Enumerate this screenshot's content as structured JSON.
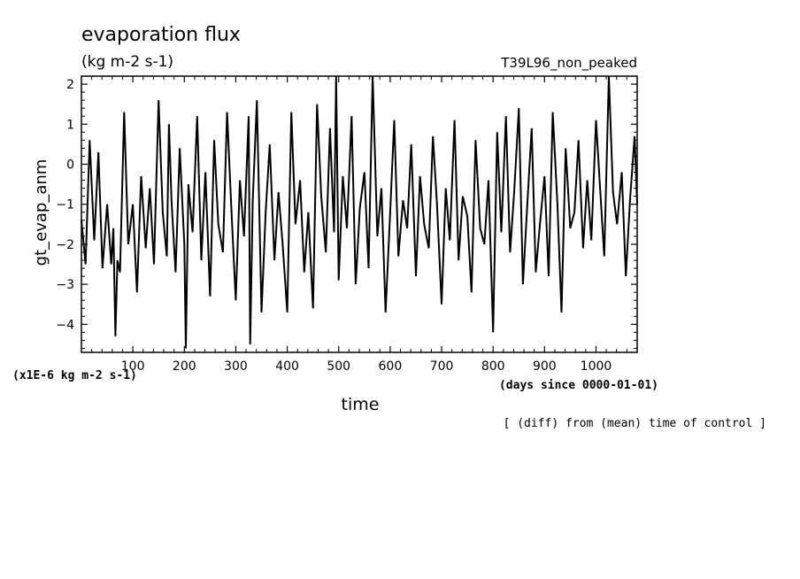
{
  "chart_data": {
    "type": "line",
    "title": "evaporation flux",
    "units": "(kg m-2 s-1)",
    "run_label": "T39L96_non_peaked",
    "xlabel": "time",
    "x_units": "(days since 0000-01-01)",
    "ylabel": "gt_evap_anm",
    "y_scale_note": "(x1E-6 kg m-2 s-1)",
    "footnote": "[ (diff) from (mean) time of control ]",
    "xlim": [
      0,
      1080
    ],
    "ylim": [
      -4.7,
      2.2
    ],
    "x_ticks": [
      100,
      200,
      300,
      400,
      500,
      600,
      700,
      800,
      900,
      1000
    ],
    "y_ticks": [
      2,
      1,
      0,
      -1,
      -2,
      -3,
      -4
    ],
    "x_tick_labels": [
      "100",
      "200",
      "300",
      "400",
      "500",
      "600",
      "700",
      "800",
      "900",
      "1000"
    ],
    "y_tick_labels": [
      "2",
      "1",
      "0",
      "−1",
      "−2",
      "−3",
      "−4"
    ],
    "series": [
      {
        "x": [
          0,
          8,
          16,
          25,
          33,
          41,
          50,
          58,
          62,
          66,
          70,
          75,
          83,
          91,
          100,
          108,
          116,
          125,
          133,
          141,
          150,
          158,
          166,
          170,
          175,
          183,
          191,
          200,
          203,
          208,
          216,
          225,
          233,
          241,
          250,
          258,
          266,
          275,
          283,
          291,
          300,
          308,
          316,
          325,
          328,
          333,
          341,
          350,
          358,
          366,
          375,
          383,
          391,
          400,
          408,
          416,
          425,
          433,
          441,
          450,
          458,
          466,
          475,
          483,
          491,
          495,
          500,
          508,
          516,
          525,
          533,
          541,
          550,
          558,
          566,
          575,
          583,
          591,
          600,
          608,
          616,
          625,
          633,
          641,
          650,
          658,
          666,
          675,
          683,
          691,
          700,
          708,
          716,
          725,
          733,
          741,
          750,
          758,
          766,
          775,
          783,
          791,
          800,
          808,
          816,
          825,
          833,
          841,
          850,
          858,
          866,
          875,
          883,
          891,
          900,
          908,
          916,
          925,
          933,
          941,
          950,
          958,
          966,
          975,
          983,
          991,
          1000,
          1008,
          1016,
          1025,
          1033,
          1041,
          1050,
          1058,
          1066,
          1075,
          1080
        ],
        "y": [
          -1.4,
          -2.5,
          0.6,
          -1.9,
          0.3,
          -2.6,
          -1.0,
          -2.5,
          -1.6,
          -4.3,
          -2.4,
          -2.7,
          1.3,
          -2.0,
          -1.0,
          -3.2,
          -0.3,
          -2.1,
          -0.6,
          -2.5,
          1.6,
          -1.2,
          -2.3,
          1.0,
          -0.9,
          -2.7,
          0.4,
          -2.0,
          -4.6,
          -0.5,
          -1.7,
          1.2,
          -2.4,
          -0.2,
          -3.3,
          0.6,
          -1.5,
          -2.2,
          1.3,
          -1.0,
          -3.4,
          -0.4,
          -1.8,
          1.2,
          -4.5,
          -0.9,
          1.6,
          -3.7,
          -1.2,
          0.5,
          -2.4,
          -0.7,
          -2.0,
          -3.7,
          1.3,
          -1.5,
          -0.4,
          -2.7,
          -1.2,
          -3.6,
          1.5,
          -0.8,
          -2.2,
          0.9,
          -1.7,
          2.2,
          -2.9,
          -0.3,
          -1.6,
          1.2,
          -3.0,
          -1.1,
          -0.2,
          -2.6,
          2.2,
          -1.8,
          -0.6,
          -3.7,
          -1.2,
          1.1,
          -2.3,
          -0.9,
          -1.6,
          0.5,
          -2.8,
          -0.3,
          -1.5,
          -2.1,
          0.7,
          -1.0,
          -3.5,
          -0.6,
          -1.9,
          1.1,
          -2.4,
          -0.8,
          -1.3,
          -3.2,
          0.6,
          -1.6,
          -2.0,
          -0.4,
          -4.2,
          0.8,
          -1.7,
          1.2,
          -2.2,
          -0.7,
          1.4,
          -3.0,
          -1.1,
          0.9,
          -2.7,
          -1.5,
          -0.3,
          -2.8,
          1.3,
          -1.0,
          -3.7,
          0.4,
          -1.6,
          -1.2,
          0.6,
          -2.1,
          -0.4,
          -1.9,
          1.1,
          -0.6,
          -2.3,
          2.2,
          -0.7,
          -1.5,
          -0.2,
          -2.8,
          -0.9,
          0.7,
          -1.0
        ]
      }
    ],
    "grid": false,
    "line_color": "#000000"
  }
}
